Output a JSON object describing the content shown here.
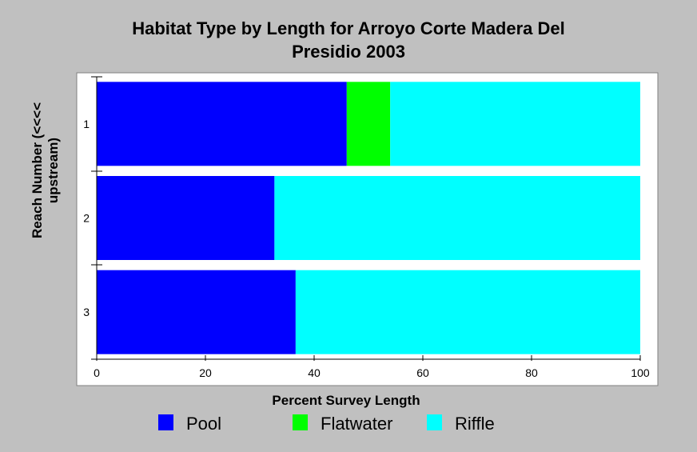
{
  "chart_data": {
    "type": "bar",
    "orientation": "horizontal",
    "stacked": true,
    "title_lines": [
      "Habitat Type by Length for Arroyo Corte Madera Del",
      "Presidio 2003"
    ],
    "xlabel": "Percent Survey Length",
    "ylabel_lines": [
      "Reach Number (<<<<",
      "upstream)"
    ],
    "categories": [
      "1",
      "2",
      "3"
    ],
    "xlim": [
      0,
      100
    ],
    "x_ticks": [
      "0",
      "20",
      "40",
      "60",
      "80",
      "100"
    ],
    "series": [
      {
        "name": "Pool",
        "color": "#0000ff",
        "values": [
          46,
          32.7,
          36.6
        ]
      },
      {
        "name": "Flatwater",
        "color": "#00ff00",
        "values": [
          8,
          0,
          0
        ]
      },
      {
        "name": "Riffle",
        "color": "#00ffff",
        "values": [
          46,
          67.3,
          63.4
        ]
      }
    ],
    "legend_position": "bottom",
    "grid": false
  }
}
